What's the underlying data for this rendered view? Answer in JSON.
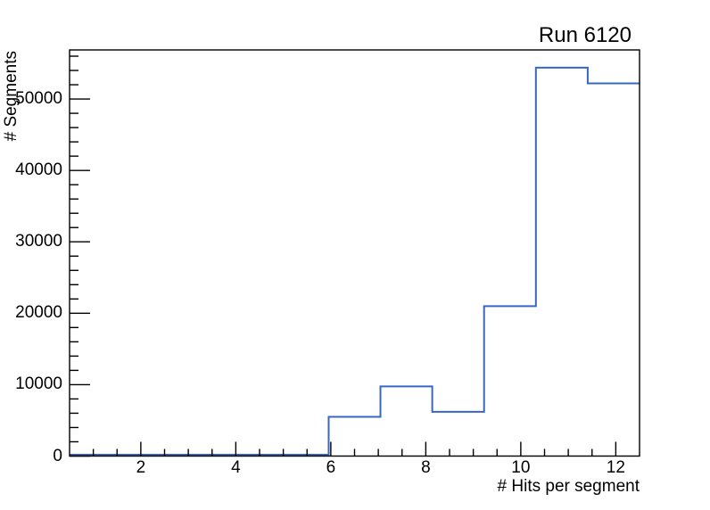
{
  "chart_data": {
    "type": "line",
    "subtype": "step-histogram",
    "title": "Run 6120",
    "xlabel": "# Hits per segment",
    "ylabel": "# Segments",
    "xlim": [
      0.5,
      12.5
    ],
    "ylim": [
      0,
      56875
    ],
    "n_bins": 11,
    "bin_edges": [
      0.5,
      1.591,
      2.682,
      3.773,
      4.864,
      5.955,
      7.045,
      8.136,
      9.227,
      10.318,
      11.409,
      12.5
    ],
    "values": [
      0,
      0,
      0,
      0,
      0,
      5500,
      9750,
      6200,
      21000,
      54400,
      52200
    ],
    "line_color": "#3767c6",
    "axis_color": "#000000",
    "background_color": "#ffffff",
    "grid": false,
    "legend": null,
    "x_ticks": {
      "major_values": [
        2,
        4,
        6,
        8,
        10,
        12
      ],
      "labels": [
        "2",
        "4",
        "6",
        "8",
        "10",
        "12"
      ],
      "minor_step": 0.5
    },
    "y_ticks": {
      "major_values": [
        0,
        10000,
        20000,
        30000,
        40000,
        50000
      ],
      "labels": [
        "0",
        "10000",
        "20000",
        "30000",
        "40000",
        "50000"
      ],
      "minor_step": 2000
    }
  }
}
